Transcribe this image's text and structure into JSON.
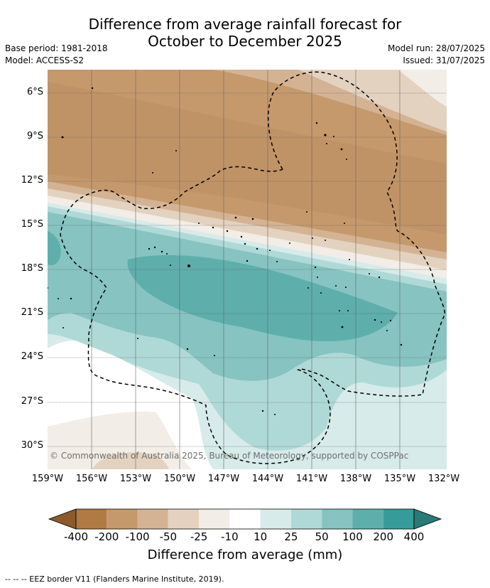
{
  "title_line1": "Difference from average rainfall forecast for",
  "title_line2": "October to December 2025",
  "base_period": "Base period: 1981-2018",
  "model": "Model: ACCESS-S2",
  "model_run": "Model run: 28/07/2025",
  "issued": "Issued: 31/07/2025",
  "latitudes": [
    "6°S",
    "9°S",
    "12°S",
    "15°S",
    "18°S",
    "21°S",
    "24°S",
    "27°S",
    "30°S"
  ],
  "longitudes": [
    "159°W",
    "156°W",
    "153°W",
    "150°W",
    "147°W",
    "144°W",
    "141°W",
    "138°W",
    "135°W",
    "132°W"
  ],
  "copyright": "© Commonwealth of Australia 2025, Bureau of Meteorology, supported by COSPPac",
  "colorbar": {
    "title": "Difference from average (mm)",
    "labels": [
      "-400",
      "-200",
      "-100",
      "-50",
      "-25",
      "-10",
      "10",
      "25",
      "50",
      "100",
      "200",
      "400"
    ],
    "colors": [
      "#8c5a2b",
      "#b07a45",
      "#c5996c",
      "#d4b394",
      "#e4d2c0",
      "#f2ede6",
      "#ffffff",
      "#d6ebea",
      "#afd9d7",
      "#86c3c1",
      "#5eaeac",
      "#379c99",
      "#2a7a78"
    ]
  },
  "footer": "--  --  -- EEZ border V11 (Flanders Marine Institute, 2019)."
}
